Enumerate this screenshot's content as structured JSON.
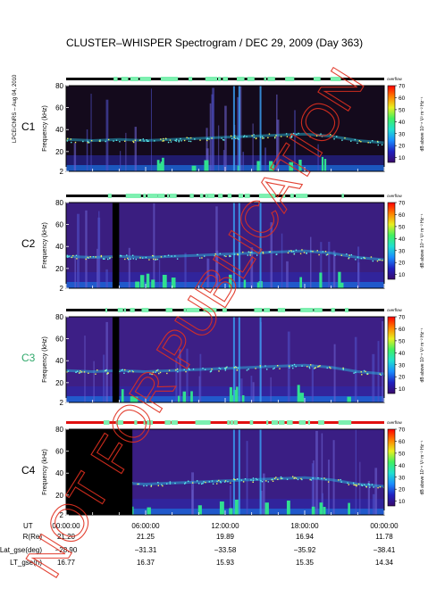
{
  "chart_data": {
    "type": "heatmap",
    "title": "CLUSTER–WHISPER Spectrogram / DEC 29, 2009 (Day 363)",
    "side_text": "LPCE/CNRS – Aug 04, 2010",
    "watermark": "NOT FOR PUBLICATION",
    "panel_labels": [
      "C1",
      "C2",
      "C3",
      "C4"
    ],
    "panel_label_colors": [
      "#000000",
      "#000000",
      "#2fa86a",
      "#000000"
    ],
    "ylabel": "Frequency (kHz)",
    "ylim": [
      2,
      80
    ],
    "yticks": [
      "2",
      "20",
      "40",
      "60",
      "80"
    ],
    "bar_label": "overflow",
    "colorbar": {
      "label": "dB above 10⁻⁸ V² m⁻² Hz⁻¹",
      "range": [
        6,
        70
      ],
      "ticks": [
        "10",
        "20",
        "30",
        "40",
        "50",
        "60",
        "70"
      ],
      "colors": [
        "#3a0a6a",
        "#2020c0",
        "#1a8cff",
        "#20e0d0",
        "#40f060",
        "#e8f020",
        "#ff8000",
        "#ff0000"
      ]
    },
    "xlim_hours": [
      0,
      24
    ],
    "x_ticks": [
      "00:00:00",
      "06:00:00",
      "12:00:00",
      "18:00:00",
      "00:00:00"
    ],
    "ephemeris": {
      "rows": [
        {
          "label": "UT",
          "values": [
            "00:00:00",
            "06:00:00",
            "12:00:00",
            "18:00:00",
            "00:00:00"
          ]
        },
        {
          "label": "R(Re)",
          "values": [
            "21.20",
            "21.25",
            "19.89",
            "16.94",
            "11.78"
          ]
        },
        {
          "label": "Lat_gse(deg)",
          "values": [
            "−28.90",
            "−31.31",
            "−33.58",
            "−35.92",
            "−38.41"
          ]
        },
        {
          "label": "LT_gse(h)",
          "values": [
            "16.77",
            "16.37",
            "15.93",
            "15.35",
            "14.34"
          ]
        }
      ]
    },
    "plasma_line_khz": [
      {
        "t": 0.0,
        "f": 31
      },
      {
        "t": 2.0,
        "f": 30
      },
      {
        "t": 4.0,
        "f": 31
      },
      {
        "t": 6.0,
        "f": 30
      },
      {
        "t": 8.0,
        "f": 31
      },
      {
        "t": 10.0,
        "f": 32
      },
      {
        "t": 12.0,
        "f": 33
      },
      {
        "t": 14.0,
        "f": 34
      },
      {
        "t": 16.0,
        "f": 35
      },
      {
        "t": 18.0,
        "f": 36
      },
      {
        "t": 20.0,
        "f": 34
      },
      {
        "t": 22.0,
        "f": 30
      },
      {
        "t": 24.0,
        "f": 28
      }
    ],
    "data_gaps_hours": [
      {
        "panel": "C2",
        "start": 3.5,
        "end": 4.0
      },
      {
        "panel": "C3",
        "start": 3.5,
        "end": 4.0
      },
      {
        "panel": "C4",
        "start": 0.0,
        "end": 5.0
      }
    ],
    "overflow_bar_color": [
      "#000000",
      "#000000",
      "#000000",
      "#e01010"
    ]
  }
}
